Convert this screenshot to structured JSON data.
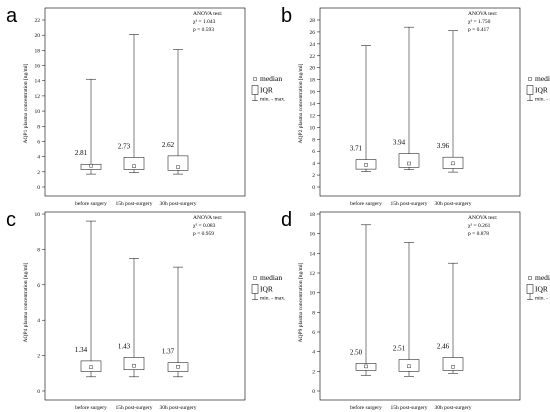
{
  "chart_data": [
    {
      "type": "box",
      "panel_letter": "a",
      "ylabel": "AQP1 plasma concentration [ng/ml]",
      "ylim": [
        0,
        22
      ],
      "yticks": [
        0,
        2,
        4,
        6,
        8,
        10,
        12,
        14,
        16,
        18,
        20,
        22
      ],
      "categories": [
        "before surgery",
        "15h post-surgery",
        "30h post-surgery"
      ],
      "median_labels": [
        "2.81",
        "2.73",
        "2.62"
      ],
      "boxes": [
        {
          "min": 1.7,
          "q1": 2.3,
          "median": 2.81,
          "q3": 3.0,
          "max": 14.2
        },
        {
          "min": 1.9,
          "q1": 2.3,
          "median": 2.73,
          "q3": 3.9,
          "max": 20.1
        },
        {
          "min": 1.7,
          "q1": 2.2,
          "median": 2.62,
          "q3": 4.1,
          "max": 18.1
        }
      ],
      "stats": [
        "ANOVA test:",
        "χ² = 1.043",
        "p = 0.593"
      ]
    },
    {
      "type": "box",
      "panel_letter": "b",
      "ylabel": "AQP2 plasma concentration [ng/ml]",
      "ylim": [
        0,
        28
      ],
      "yticks": [
        0,
        2,
        4,
        6,
        8,
        10,
        12,
        14,
        16,
        18,
        20,
        22,
        24,
        26,
        28
      ],
      "categories": [
        "before surgery",
        "15h post-surgery",
        "30h post-surgery"
      ],
      "median_labels": [
        "3.71",
        "3.94",
        "3.96"
      ],
      "boxes": [
        {
          "min": 2.6,
          "q1": 3.0,
          "median": 3.71,
          "q3": 4.6,
          "max": 23.7
        },
        {
          "min": 2.9,
          "q1": 3.3,
          "median": 3.94,
          "q3": 5.6,
          "max": 26.8
        },
        {
          "min": 2.5,
          "q1": 3.1,
          "median": 3.96,
          "q3": 5.0,
          "max": 26.2
        }
      ],
      "stats": [
        "ANOVA test:",
        "χ² = 1.750",
        "p = 0.417"
      ]
    },
    {
      "type": "box",
      "panel_letter": "c",
      "ylabel": "AQP4 plasma concentration [ng/ml]",
      "ylim": [
        0,
        10
      ],
      "yticks": [
        0,
        2,
        4,
        6,
        8,
        10
      ],
      "categories": [
        "before surgery",
        "15h post-surgery",
        "30h post-surgery"
      ],
      "median_labels": [
        "1.34",
        "1.43",
        "1.37"
      ],
      "boxes": [
        {
          "min": 0.8,
          "q1": 1.1,
          "median": 1.34,
          "q3": 1.7,
          "max": 9.6
        },
        {
          "min": 0.8,
          "q1": 1.2,
          "median": 1.43,
          "q3": 1.9,
          "max": 7.5
        },
        {
          "min": 0.8,
          "q1": 1.1,
          "median": 1.37,
          "q3": 1.6,
          "max": 7.0
        }
      ],
      "stats": [
        "ANOVA test:",
        "χ² = 0.083",
        "p = 0.959"
      ]
    },
    {
      "type": "box",
      "panel_letter": "d",
      "ylabel": "AQP9 plasma concentration [ng/ml]",
      "ylim": [
        0,
        18
      ],
      "yticks": [
        0,
        2,
        4,
        6,
        8,
        10,
        12,
        14,
        16,
        18
      ],
      "categories": [
        "before surgery",
        "15h post-surgery",
        "30h post-surgery"
      ],
      "median_labels": [
        "2.50",
        "2.51",
        "2.46"
      ],
      "boxes": [
        {
          "min": 1.6,
          "q1": 2.1,
          "median": 2.5,
          "q3": 2.8,
          "max": 16.9
        },
        {
          "min": 1.5,
          "q1": 2.0,
          "median": 2.51,
          "q3": 3.2,
          "max": 15.1
        },
        {
          "min": 1.8,
          "q1": 2.1,
          "median": 2.46,
          "q3": 3.4,
          "max": 13.0
        }
      ],
      "stats": [
        "ANOVA test:",
        "χ² = 0.261",
        "p = 0.878"
      ]
    }
  ],
  "legend": {
    "median": "median",
    "iqr": "IQR",
    "range": "min. - max."
  }
}
